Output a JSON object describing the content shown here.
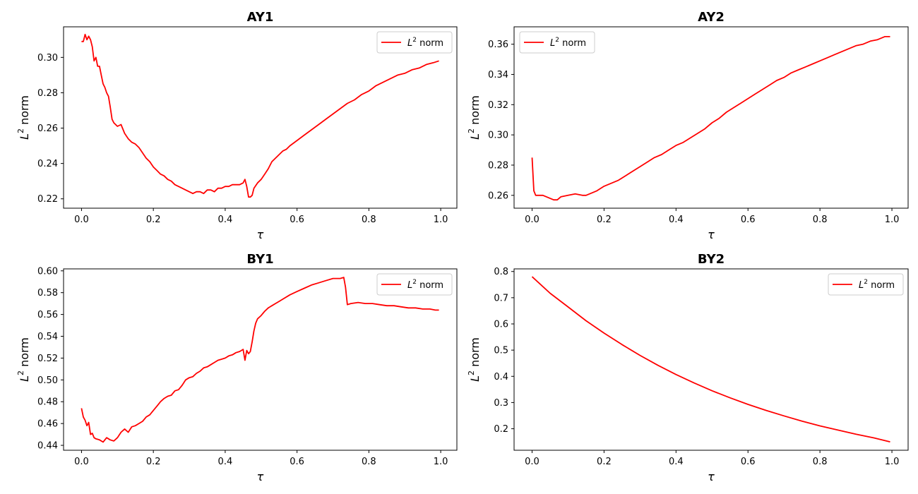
{
  "figure": {
    "background": "#ffffff",
    "line_color": "#ff0000"
  },
  "chart_data": [
    {
      "type": "line",
      "title": "AY1",
      "xlabel": "τ",
      "ylabel_base": "L",
      "ylabel_sup": "2",
      "ylabel_rest": " norm",
      "xlim": [
        -0.05,
        1.045
      ],
      "ylim": [
        0.2147,
        0.3173
      ],
      "xticks": [
        0.0,
        0.2,
        0.4,
        0.6,
        0.8,
        1.0
      ],
      "xtick_labels": [
        "0.0",
        "0.2",
        "0.4",
        "0.6",
        "0.8",
        "1.0"
      ],
      "yticks": [
        0.22,
        0.24,
        0.26,
        0.28,
        0.3
      ],
      "ytick_labels": [
        "0.22",
        "0.24",
        "0.26",
        "0.28",
        "0.30"
      ],
      "legend": {
        "position": "upper right",
        "label_base": "L",
        "label_sup": "2",
        "label_rest": " norm"
      },
      "series": [
        {
          "name": "L2 norm",
          "color": "#ff0000",
          "x": [
            0.0,
            0.005,
            0.01,
            0.015,
            0.02,
            0.025,
            0.03,
            0.035,
            0.04,
            0.045,
            0.05,
            0.055,
            0.06,
            0.065,
            0.07,
            0.075,
            0.08,
            0.085,
            0.09,
            0.1,
            0.11,
            0.12,
            0.13,
            0.14,
            0.15,
            0.16,
            0.17,
            0.18,
            0.19,
            0.2,
            0.21,
            0.22,
            0.23,
            0.24,
            0.25,
            0.26,
            0.27,
            0.28,
            0.29,
            0.3,
            0.31,
            0.32,
            0.33,
            0.34,
            0.35,
            0.36,
            0.37,
            0.38,
            0.39,
            0.4,
            0.41,
            0.42,
            0.43,
            0.44,
            0.45,
            0.455,
            0.46,
            0.465,
            0.47,
            0.475,
            0.48,
            0.49,
            0.5,
            0.51,
            0.52,
            0.53,
            0.54,
            0.55,
            0.56,
            0.57,
            0.58,
            0.6,
            0.62,
            0.64,
            0.66,
            0.68,
            0.7,
            0.72,
            0.74,
            0.76,
            0.78,
            0.8,
            0.82,
            0.84,
            0.86,
            0.88,
            0.9,
            0.92,
            0.94,
            0.96,
            0.98,
            0.995
          ],
          "y": [
            0.309,
            0.309,
            0.313,
            0.31,
            0.312,
            0.31,
            0.306,
            0.298,
            0.3,
            0.295,
            0.295,
            0.29,
            0.285,
            0.283,
            0.28,
            0.278,
            0.272,
            0.265,
            0.263,
            0.261,
            0.262,
            0.257,
            0.254,
            0.252,
            0.251,
            0.249,
            0.246,
            0.243,
            0.241,
            0.238,
            0.236,
            0.234,
            0.233,
            0.231,
            0.23,
            0.228,
            0.227,
            0.226,
            0.225,
            0.224,
            0.223,
            0.224,
            0.224,
            0.223,
            0.225,
            0.225,
            0.224,
            0.226,
            0.226,
            0.227,
            0.227,
            0.228,
            0.228,
            0.228,
            0.229,
            0.231,
            0.227,
            0.221,
            0.221,
            0.222,
            0.226,
            0.229,
            0.231,
            0.234,
            0.237,
            0.241,
            0.243,
            0.245,
            0.247,
            0.248,
            0.25,
            0.253,
            0.256,
            0.259,
            0.262,
            0.265,
            0.268,
            0.271,
            0.274,
            0.276,
            0.279,
            0.281,
            0.284,
            0.286,
            0.288,
            0.29,
            0.291,
            0.293,
            0.294,
            0.296,
            0.297,
            0.298
          ]
        }
      ]
    },
    {
      "type": "line",
      "title": "AY2",
      "xlabel": "τ",
      "ylabel_base": "L",
      "ylabel_sup": "2",
      "ylabel_rest": " norm",
      "xlim": [
        -0.05,
        1.045
      ],
      "ylim": [
        0.2515,
        0.3715
      ],
      "xticks": [
        0.0,
        0.2,
        0.4,
        0.6,
        0.8,
        1.0
      ],
      "xtick_labels": [
        "0.0",
        "0.2",
        "0.4",
        "0.6",
        "0.8",
        "1.0"
      ],
      "yticks": [
        0.26,
        0.28,
        0.3,
        0.32,
        0.34,
        0.36
      ],
      "ytick_labels": [
        "0.26",
        "0.28",
        "0.30",
        "0.32",
        "0.34",
        "0.36"
      ],
      "legend": {
        "position": "upper left",
        "label_base": "L",
        "label_sup": "2",
        "label_rest": " norm"
      },
      "series": [
        {
          "name": "L2 norm",
          "color": "#ff0000",
          "x": [
            0.0,
            0.005,
            0.01,
            0.02,
            0.03,
            0.04,
            0.05,
            0.06,
            0.07,
            0.08,
            0.1,
            0.12,
            0.14,
            0.15,
            0.16,
            0.18,
            0.2,
            0.22,
            0.24,
            0.26,
            0.28,
            0.3,
            0.32,
            0.34,
            0.36,
            0.38,
            0.4,
            0.42,
            0.44,
            0.46,
            0.48,
            0.5,
            0.52,
            0.54,
            0.56,
            0.58,
            0.6,
            0.62,
            0.64,
            0.66,
            0.68,
            0.7,
            0.72,
            0.74,
            0.76,
            0.78,
            0.8,
            0.82,
            0.84,
            0.86,
            0.88,
            0.9,
            0.92,
            0.94,
            0.96,
            0.98,
            0.995
          ],
          "y": [
            0.285,
            0.263,
            0.26,
            0.26,
            0.26,
            0.259,
            0.258,
            0.257,
            0.257,
            0.259,
            0.26,
            0.261,
            0.26,
            0.26,
            0.261,
            0.263,
            0.266,
            0.268,
            0.27,
            0.273,
            0.276,
            0.279,
            0.282,
            0.285,
            0.287,
            0.29,
            0.293,
            0.295,
            0.298,
            0.301,
            0.304,
            0.308,
            0.311,
            0.315,
            0.318,
            0.321,
            0.324,
            0.327,
            0.33,
            0.333,
            0.336,
            0.338,
            0.341,
            0.343,
            0.345,
            0.347,
            0.349,
            0.351,
            0.353,
            0.355,
            0.357,
            0.359,
            0.36,
            0.362,
            0.363,
            0.365,
            0.365
          ]
        }
      ]
    },
    {
      "type": "line",
      "title": "BY1",
      "xlabel": "τ",
      "ylabel_base": "L",
      "ylabel_sup": "2",
      "ylabel_rest": " norm",
      "xlim": [
        -0.05,
        1.045
      ],
      "ylim": [
        0.4355,
        0.6018
      ],
      "xticks": [
        0.0,
        0.2,
        0.4,
        0.6,
        0.8,
        1.0
      ],
      "xtick_labels": [
        "0.0",
        "0.2",
        "0.4",
        "0.6",
        "0.8",
        "1.0"
      ],
      "yticks": [
        0.44,
        0.46,
        0.48,
        0.5,
        0.52,
        0.54,
        0.56,
        0.58,
        0.6
      ],
      "ytick_labels": [
        "0.44",
        "0.46",
        "0.48",
        "0.50",
        "0.52",
        "0.54",
        "0.56",
        "0.58",
        "0.60"
      ],
      "legend": {
        "position": "upper right",
        "label_base": "L",
        "label_sup": "2",
        "label_rest": " norm"
      },
      "series": [
        {
          "name": "L2 norm",
          "color": "#ff0000",
          "x": [
            0.0,
            0.005,
            0.01,
            0.015,
            0.02,
            0.025,
            0.03,
            0.035,
            0.04,
            0.05,
            0.06,
            0.07,
            0.08,
            0.09,
            0.1,
            0.11,
            0.12,
            0.13,
            0.14,
            0.15,
            0.16,
            0.17,
            0.18,
            0.19,
            0.2,
            0.21,
            0.22,
            0.23,
            0.24,
            0.25,
            0.26,
            0.27,
            0.28,
            0.29,
            0.3,
            0.31,
            0.32,
            0.33,
            0.34,
            0.35,
            0.36,
            0.37,
            0.38,
            0.39,
            0.4,
            0.41,
            0.42,
            0.43,
            0.44,
            0.45,
            0.455,
            0.46,
            0.465,
            0.47,
            0.475,
            0.48,
            0.485,
            0.49,
            0.5,
            0.51,
            0.52,
            0.53,
            0.54,
            0.55,
            0.56,
            0.58,
            0.6,
            0.62,
            0.64,
            0.66,
            0.68,
            0.7,
            0.72,
            0.73,
            0.735,
            0.74,
            0.75,
            0.77,
            0.79,
            0.81,
            0.83,
            0.85,
            0.87,
            0.89,
            0.91,
            0.93,
            0.95,
            0.97,
            0.985,
            0.995
          ],
          "y": [
            0.474,
            0.466,
            0.463,
            0.458,
            0.461,
            0.45,
            0.451,
            0.447,
            0.446,
            0.445,
            0.443,
            0.447,
            0.445,
            0.444,
            0.447,
            0.452,
            0.455,
            0.452,
            0.457,
            0.458,
            0.46,
            0.462,
            0.466,
            0.468,
            0.472,
            0.476,
            0.48,
            0.483,
            0.485,
            0.486,
            0.49,
            0.491,
            0.495,
            0.5,
            0.502,
            0.503,
            0.506,
            0.508,
            0.511,
            0.512,
            0.514,
            0.516,
            0.518,
            0.519,
            0.52,
            0.522,
            0.523,
            0.525,
            0.526,
            0.528,
            0.518,
            0.527,
            0.524,
            0.526,
            0.535,
            0.545,
            0.552,
            0.556,
            0.559,
            0.563,
            0.566,
            0.568,
            0.57,
            0.572,
            0.574,
            0.578,
            0.581,
            0.584,
            0.587,
            0.589,
            0.591,
            0.593,
            0.593,
            0.594,
            0.585,
            0.569,
            0.57,
            0.571,
            0.57,
            0.57,
            0.569,
            0.568,
            0.568,
            0.567,
            0.566,
            0.566,
            0.565,
            0.565,
            0.564,
            0.564
          ]
        }
      ]
    },
    {
      "type": "line",
      "title": "BY2",
      "xlabel": "τ",
      "ylabel_base": "L",
      "ylabel_sup": "2",
      "ylabel_rest": " norm",
      "xlim": [
        -0.05,
        1.045
      ],
      "ylim": [
        0.118,
        0.81
      ],
      "xticks": [
        0.0,
        0.2,
        0.4,
        0.6,
        0.8,
        1.0
      ],
      "xtick_labels": [
        "0.0",
        "0.2",
        "0.4",
        "0.6",
        "0.8",
        "1.0"
      ],
      "yticks": [
        0.2,
        0.3,
        0.4,
        0.5,
        0.6,
        0.7,
        0.8
      ],
      "ytick_labels": [
        "0.2",
        "0.3",
        "0.4",
        "0.5",
        "0.6",
        "0.7",
        "0.8"
      ],
      "legend": {
        "position": "upper right",
        "label_base": "L",
        "label_sup": "2",
        "label_rest": " norm"
      },
      "series": [
        {
          "name": "L2 norm",
          "color": "#ff0000",
          "x": [
            0.0,
            0.05,
            0.1,
            0.15,
            0.2,
            0.25,
            0.3,
            0.35,
            0.4,
            0.45,
            0.5,
            0.55,
            0.6,
            0.65,
            0.7,
            0.75,
            0.8,
            0.85,
            0.9,
            0.95,
            0.995
          ],
          "y": [
            0.78,
            0.717,
            0.665,
            0.612,
            0.565,
            0.521,
            0.48,
            0.442,
            0.407,
            0.375,
            0.345,
            0.318,
            0.293,
            0.27,
            0.249,
            0.229,
            0.211,
            0.195,
            0.179,
            0.165,
            0.15
          ]
        }
      ]
    }
  ]
}
